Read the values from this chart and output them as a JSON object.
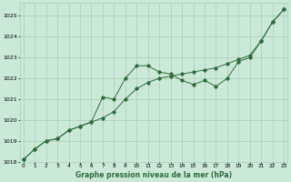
{
  "x": [
    0,
    1,
    2,
    3,
    4,
    5,
    6,
    7,
    8,
    9,
    10,
    11,
    12,
    13,
    14,
    15,
    16,
    17,
    18,
    19,
    20,
    21,
    22,
    23
  ],
  "line1": [
    1018.1,
    1018.6,
    1019.0,
    1019.1,
    1019.5,
    1019.7,
    1019.9,
    1020.1,
    1020.4,
    1021.0,
    1021.5,
    1021.8,
    1022.0,
    1022.1,
    1022.2,
    1022.3,
    1022.4,
    1022.5,
    1022.7,
    1022.9,
    1023.1,
    1023.8,
    1024.7,
    1025.3
  ],
  "line2": [
    1018.1,
    1018.6,
    1019.0,
    1019.1,
    1019.5,
    1019.7,
    1019.9,
    1021.1,
    1021.0,
    1022.0,
    1022.6,
    1022.6,
    1022.3,
    1022.2,
    1021.9,
    1021.7,
    1021.9,
    1021.6,
    1022.0,
    1022.8,
    1023.0,
    1023.8,
    1024.7,
    1025.3
  ],
  "background_color": "#cce8d8",
  "grid_color": "#aaccb8",
  "line_color": "#2d6e3e",
  "ylim_min": 1018,
  "ylim_max": 1025.6,
  "xlabel": "Graphe pression niveau de la mer (hPa)",
  "yticks": [
    1018,
    1019,
    1020,
    1021,
    1022,
    1023,
    1024,
    1025
  ],
  "xticks": [
    0,
    1,
    2,
    3,
    4,
    5,
    6,
    7,
    8,
    9,
    10,
    11,
    12,
    13,
    14,
    15,
    16,
    17,
    18,
    19,
    20,
    21,
    22,
    23
  ]
}
